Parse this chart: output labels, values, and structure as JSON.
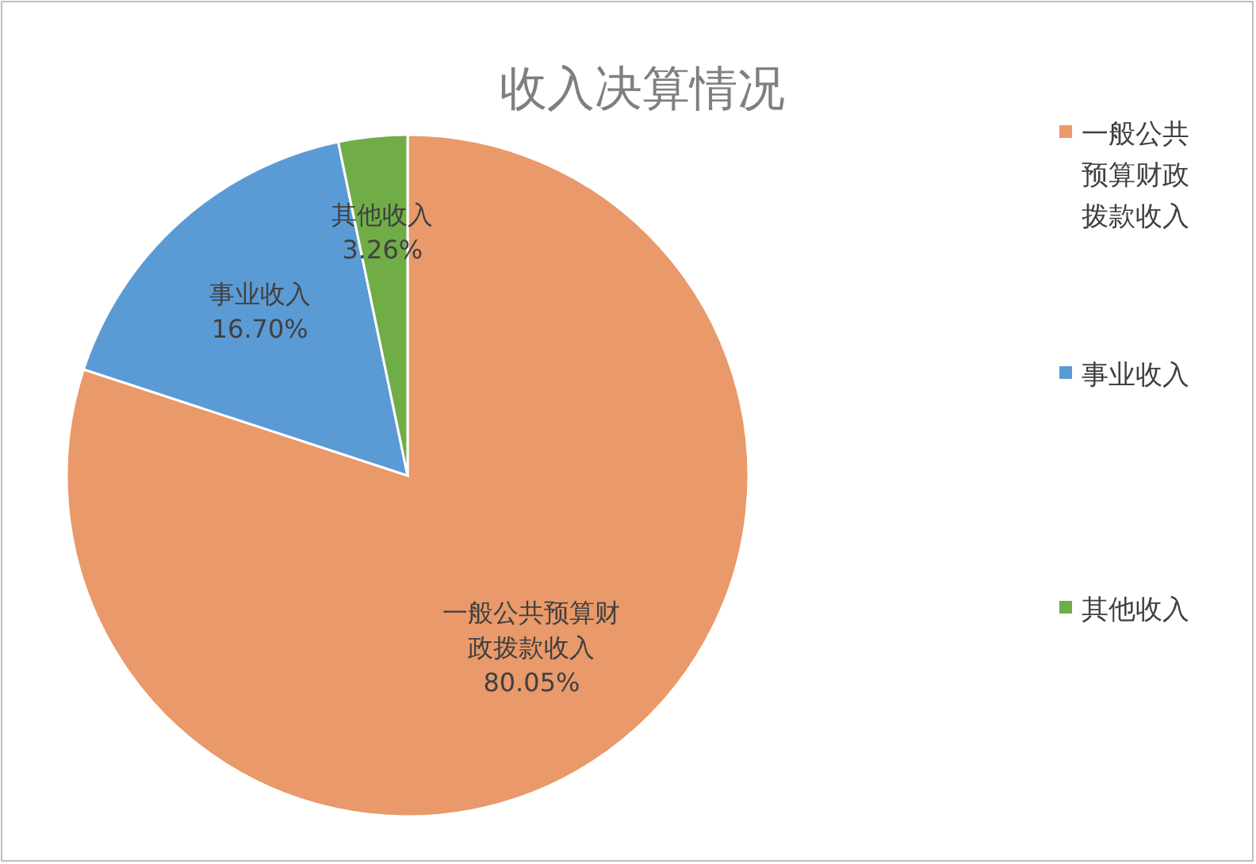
{
  "chart_data": {
    "type": "pie",
    "title": "收入决算情况",
    "categories": [
      "一般公共预算财政拨款收入",
      "事业收入",
      "其他收入"
    ],
    "values": [
      80.05,
      16.7,
      3.26
    ],
    "colors": [
      "#e9996a",
      "#5b9bd5",
      "#70ad47"
    ],
    "value_labels": [
      "80.05%",
      "16.70%",
      "3.26%"
    ],
    "legend": "right"
  }
}
